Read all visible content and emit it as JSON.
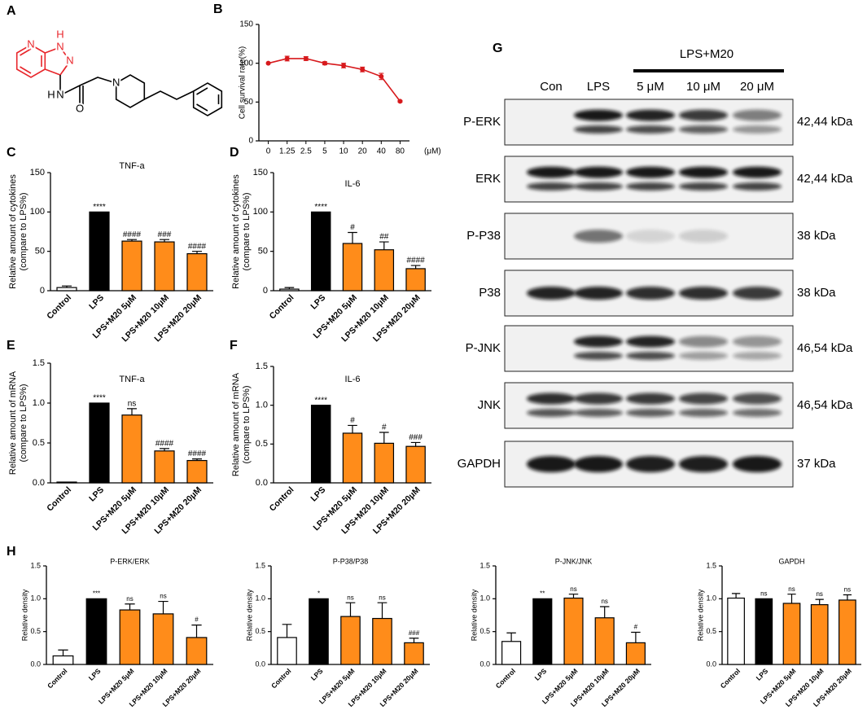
{
  "structure": {
    "panel": "A",
    "atoms": [
      "N",
      "N",
      "H",
      "N",
      "H",
      "N",
      "O",
      "N"
    ]
  },
  "blot": {
    "panel": "G",
    "group_label": "LPS+M20",
    "lanes": [
      "Con",
      "LPS",
      "5 μM",
      "10 μM",
      "20 μM"
    ],
    "rows": [
      {
        "name": "P-ERK",
        "size": "42,44 kDa"
      },
      {
        "name": "ERK",
        "size": "42,44 kDa"
      },
      {
        "name": "P-P38",
        "size": "38 kDa"
      },
      {
        "name": "P38",
        "size": "38 kDa"
      },
      {
        "name": "P-JNK",
        "size": "46,54 kDa"
      },
      {
        "name": "JNK",
        "size": "46,54 kDa"
      },
      {
        "name": "GAPDH",
        "size": "37 kDa"
      }
    ]
  },
  "chart_data": [
    {
      "type": "line",
      "panel": "B",
      "ylabel": [
        "Cell survival rate(%)"
      ],
      "categories": [
        "0",
        "1.25",
        "2.5",
        "5",
        "10",
        "20",
        "40",
        "80"
      ],
      "x_unit": "(μM)",
      "values": [
        100,
        106,
        106,
        100,
        97,
        92,
        83,
        51
      ],
      "errors": [
        0,
        3,
        2.5,
        2,
        3,
        3,
        4,
        1
      ],
      "color": "#d7191c",
      "ylim": [
        0,
        150
      ],
      "yticks": [
        0,
        50,
        100,
        150
      ]
    },
    {
      "type": "bar",
      "panel": "C",
      "title": "TNF-a",
      "ylabel": [
        "Relative amount of cytokines",
        "(compare to LPS%)"
      ],
      "categories": [
        "Control",
        "LPS",
        "LPS+M20 5μM",
        "LPS+M20 10μM",
        "LPS+M20 20μM"
      ],
      "values": [
        4,
        100,
        63,
        62,
        47
      ],
      "errors": [
        2,
        0,
        2,
        3,
        3
      ],
      "annotations": [
        null,
        "****",
        "####",
        "###",
        "####"
      ],
      "colors": [
        "#ffffff",
        "#000000",
        "#ff8c1a",
        "#ff8c1a",
        "#ff8c1a"
      ],
      "ylim": [
        0,
        150
      ],
      "yticks": [
        0,
        50,
        100,
        150
      ]
    },
    {
      "type": "bar",
      "panel": "D",
      "title": "IL-6",
      "ylabel": [
        "Relative amount of cytokines",
        "(compare to LPS%)"
      ],
      "categories": [
        "Control",
        "LPS",
        "LPS+M20 5μM",
        "LPS+M20 10μM",
        "LPS+M20 20μM"
      ],
      "values": [
        2,
        100,
        60,
        52,
        28
      ],
      "errors": [
        2,
        0,
        14,
        10,
        4
      ],
      "annotations": [
        null,
        "****",
        "#",
        "##",
        "####"
      ],
      "colors": [
        "#ffffff",
        "#000000",
        "#ff8c1a",
        "#ff8c1a",
        "#ff8c1a"
      ],
      "ylim": [
        0,
        150
      ],
      "yticks": [
        0,
        50,
        100,
        150
      ]
    },
    {
      "type": "bar",
      "panel": "E",
      "title": "TNF-a",
      "ylabel": [
        "Relative amount of mRNA",
        "(compare to LPS%)"
      ],
      "categories": [
        "Control",
        "LPS",
        "LPS+M20 5μM",
        "LPS+M20 10μM",
        "LPS+M20 20μM"
      ],
      "values": [
        0.01,
        1.0,
        0.85,
        0.4,
        0.28
      ],
      "errors": [
        0,
        0,
        0.08,
        0.03,
        0.02
      ],
      "annotations": [
        null,
        "****",
        "ns",
        "####",
        "####"
      ],
      "colors": [
        "#ffffff",
        "#000000",
        "#ff8c1a",
        "#ff8c1a",
        "#ff8c1a"
      ],
      "ylim": [
        0,
        1.5
      ],
      "yticks": [
        {
          "value": 0,
          "label": "0.0"
        },
        0.5,
        {
          "value": 1,
          "label": "1.0"
        },
        1.5
      ]
    },
    {
      "type": "bar",
      "panel": "F",
      "title": "IL-6",
      "ylabel": [
        "Relative amount of mRNA",
        "(compare to LPS%)"
      ],
      "categories": [
        "Control",
        "LPS",
        "LPS+M20 5μM",
        "LPS+M20 10μM",
        "LPS+M20 20μM"
      ],
      "values": [
        0,
        1.0,
        0.64,
        0.51,
        0.47
      ],
      "errors": [
        0,
        0,
        0.1,
        0.14,
        0.05
      ],
      "annotations": [
        null,
        "****",
        "#",
        "#",
        "###"
      ],
      "colors": [
        "#ffffff",
        "#000000",
        "#ff8c1a",
        "#ff8c1a",
        "#ff8c1a"
      ],
      "ylim": [
        0,
        1.5
      ],
      "yticks": [
        {
          "value": 0,
          "label": "0.0"
        },
        0.5,
        {
          "value": 1,
          "label": "1.0"
        },
        1.5
      ]
    },
    {
      "type": "bar",
      "panel": "H",
      "title": "P-ERK/ERK",
      "ylabel": [
        "Relative density"
      ],
      "categories": [
        "Control",
        "LPS",
        "LPS+M20 5μM",
        "LPS+M20 10μM",
        "LPS+M20 20μM"
      ],
      "values": [
        0.13,
        1.0,
        0.83,
        0.77,
        0.41
      ],
      "errors": [
        0.09,
        0,
        0.09,
        0.19,
        0.19
      ],
      "annotations": [
        null,
        "***",
        "ns",
        "ns",
        "#"
      ],
      "colors": [
        "#ffffff",
        "#000000",
        "#ff8c1a",
        "#ff8c1a",
        "#ff8c1a"
      ],
      "ylim": [
        0,
        1.5
      ],
      "yticks": [
        {
          "value": 0,
          "label": "0.0"
        },
        0.5,
        {
          "value": 1,
          "label": "1.0"
        },
        1.5
      ]
    },
    {
      "type": "bar",
      "title": "P-P38/P38",
      "ylabel": [
        "Relative density"
      ],
      "categories": [
        "Control",
        "LPS",
        "LPS+M20 5μM",
        "LPS+M20 10μM",
        "LPS+M20 20μM"
      ],
      "values": [
        0.41,
        1.0,
        0.73,
        0.7,
        0.33
      ],
      "errors": [
        0.2,
        0,
        0.21,
        0.24,
        0.07
      ],
      "annotations": [
        null,
        "*",
        "ns",
        "ns",
        "###"
      ],
      "colors": [
        "#ffffff",
        "#000000",
        "#ff8c1a",
        "#ff8c1a",
        "#ff8c1a"
      ],
      "ylim": [
        0,
        1.5
      ],
      "yticks": [
        {
          "value": 0,
          "label": "0.0"
        },
        0.5,
        {
          "value": 1,
          "label": "1.0"
        },
        1.5
      ]
    },
    {
      "type": "bar",
      "title": "P-JNK/JNK",
      "ylabel": [
        "Relative density"
      ],
      "categories": [
        "Control",
        "LPS",
        "LPS+M20 5μM",
        "LPS+M20 10μM",
        "LPS+M20 20μM"
      ],
      "values": [
        0.35,
        1.0,
        1.01,
        0.71,
        0.33
      ],
      "errors": [
        0.13,
        0,
        0.06,
        0.17,
        0.16
      ],
      "annotations": [
        null,
        "**",
        "ns",
        "ns",
        "#"
      ],
      "colors": [
        "#ffffff",
        "#000000",
        "#ff8c1a",
        "#ff8c1a",
        "#ff8c1a"
      ],
      "ylim": [
        0,
        1.5
      ],
      "yticks": [
        {
          "value": 0,
          "label": "0.0"
        },
        0.5,
        {
          "value": 1,
          "label": "1.0"
        },
        1.5
      ]
    },
    {
      "type": "bar",
      "title": "GAPDH",
      "ylabel": [
        "Relative density"
      ],
      "categories": [
        "Control",
        "LPS",
        "LPS+M20 5μM",
        "LPS+M20 10μM",
        "LPS+M20 20μM"
      ],
      "values": [
        1.01,
        1.0,
        0.93,
        0.91,
        0.98
      ],
      "errors": [
        0.07,
        0,
        0.14,
        0.08,
        0.08
      ],
      "annotations": [
        null,
        "ns",
        "ns",
        "ns",
        "ns"
      ],
      "colors": [
        "#ffffff",
        "#000000",
        "#ff8c1a",
        "#ff8c1a",
        "#ff8c1a"
      ],
      "ylim": [
        0,
        1.5
      ],
      "yticks": [
        {
          "value": 0,
          "label": "0.0"
        },
        0.5,
        {
          "value": 1,
          "label": "1.0"
        },
        1.5
      ]
    }
  ]
}
